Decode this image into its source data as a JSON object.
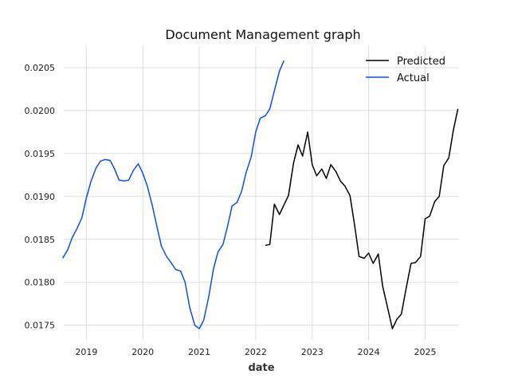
{
  "chart_data": {
    "type": "line",
    "title": "Document Management graph",
    "xlabel": "date",
    "ylabel": "",
    "xlim": [
      2018.6,
      2025.6
    ],
    "ylim": [
      0.01733,
      0.02075
    ],
    "x_ticks": [
      2019,
      2020,
      2021,
      2022,
      2023,
      2024,
      2025
    ],
    "x_tick_labels": [
      "2019",
      "2020",
      "2021",
      "2022",
      "2023",
      "2024",
      "2025"
    ],
    "y_ticks": [
      0.0175,
      0.018,
      0.0185,
      0.019,
      0.0195,
      0.02,
      0.0205
    ],
    "y_tick_labels": [
      "0.0175",
      "0.0180",
      "0.0185",
      "0.0190",
      "0.0195",
      "0.0200",
      "0.0205"
    ],
    "grid": true,
    "legend_position": "top-right",
    "series": [
      {
        "name": "Predicted",
        "color": "#000000",
        "x": [
          2022.17,
          2022.25,
          2022.33,
          2022.42,
          2022.5,
          2022.58,
          2022.67,
          2022.75,
          2022.83,
          2022.92,
          2023.0,
          2023.08,
          2023.17,
          2023.25,
          2023.33,
          2023.42,
          2023.5,
          2023.58,
          2023.67,
          2023.75,
          2023.83,
          2023.92,
          2024.0,
          2024.08,
          2024.17,
          2024.25,
          2024.33,
          2024.42,
          2024.5,
          2024.58,
          2024.67,
          2024.75,
          2024.83,
          2024.92,
          2025.0,
          2025.08,
          2025.17,
          2025.25,
          2025.33,
          2025.42,
          2025.5,
          2025.58
        ],
        "y": [
          0.01843,
          0.01844,
          0.01891,
          0.01879,
          0.0189,
          0.01901,
          0.01939,
          0.0196,
          0.01947,
          0.01975,
          0.01937,
          0.01924,
          0.01932,
          0.01921,
          0.01937,
          0.01929,
          0.01918,
          0.01912,
          0.01901,
          0.01867,
          0.0183,
          0.01828,
          0.01834,
          0.01822,
          0.01833,
          0.01795,
          0.01772,
          0.01746,
          0.01757,
          0.01763,
          0.01795,
          0.01822,
          0.01823,
          0.0183,
          0.01874,
          0.01877,
          0.01894,
          0.019,
          0.01936,
          0.01945,
          0.01977,
          0.02002
        ]
      },
      {
        "name": "Actual",
        "color": "#0a4ef5",
        "x": [
          2018.58,
          2018.67,
          2018.75,
          2018.83,
          2018.92,
          2019.0,
          2019.08,
          2019.17,
          2019.25,
          2019.33,
          2019.42,
          2019.5,
          2019.58,
          2019.67,
          2019.75,
          2019.83,
          2019.92,
          2020.0,
          2020.08,
          2020.17,
          2020.25,
          2020.33,
          2020.42,
          2020.5,
          2020.58,
          2020.67,
          2020.75,
          2020.83,
          2020.92,
          2021.0,
          2021.08,
          2021.17,
          2021.25,
          2021.33,
          2021.42,
          2021.5,
          2021.58,
          2021.67,
          2021.75,
          2021.83,
          2021.92,
          2022.0,
          2022.08,
          2022.17,
          2022.25,
          2022.33,
          2022.42,
          2022.5
        ],
        "y": [
          0.01828,
          0.01838,
          0.01852,
          0.01862,
          0.01875,
          0.01898,
          0.01917,
          0.01933,
          0.01941,
          0.01943,
          0.01942,
          0.01932,
          0.01919,
          0.01918,
          0.01919,
          0.0193,
          0.01938,
          0.01927,
          0.01912,
          0.01889,
          0.01865,
          0.01842,
          0.0183,
          0.01823,
          0.01815,
          0.01813,
          0.018,
          0.01771,
          0.0175,
          0.01746,
          0.01756,
          0.01784,
          0.01815,
          0.01835,
          0.01844,
          0.01865,
          0.01889,
          0.01893,
          0.01906,
          0.01928,
          0.01946,
          0.01975,
          0.01991,
          0.01994,
          0.02002,
          0.02023,
          0.02046,
          0.02058
        ]
      }
    ]
  }
}
